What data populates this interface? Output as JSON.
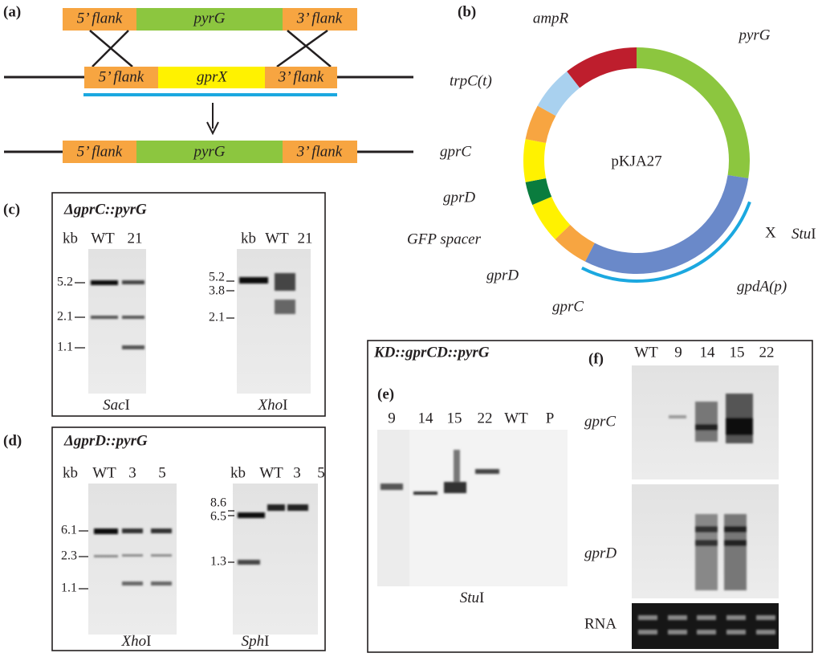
{
  "panel_a": {
    "label": "(a)",
    "rows": [
      {
        "left": "5’ flank",
        "mid": "pyrG",
        "right": "3’ flank"
      },
      {
        "left": "5’ flank",
        "mid": "gprX",
        "right": "3’ flank"
      },
      {
        "left": "5’ flank",
        "mid": "pyrG",
        "right": "3’ flank"
      }
    ]
  },
  "panel_b": {
    "label": "(b)",
    "name": "pKJA27",
    "features": [
      "ampR",
      "pyrG",
      "trpC(t)",
      "gprC",
      "gprD",
      "GFP spacer",
      "gprD",
      "gprC",
      "gpdA(p)"
    ],
    "site": {
      "mark": "X",
      "italic": "Stu",
      "roman": "I"
    }
  },
  "panel_c": {
    "label": "(c)",
    "title": "ΔgprC::pyrG",
    "blots": [
      {
        "header": [
          "kb",
          "WT",
          "21"
        ],
        "markers": [
          "5.2",
          "2.1",
          "1.1"
        ],
        "enzyme": {
          "italic": "Sac",
          "roman": "I"
        }
      },
      {
        "header": [
          "kb",
          "WT",
          "21"
        ],
        "markers": [
          "5.2",
          "3.8",
          "2.1"
        ],
        "enzyme": {
          "italic": "Xho",
          "roman": "I"
        }
      }
    ]
  },
  "panel_d": {
    "label": "(d)",
    "title": "ΔgprD::pyrG",
    "blots": [
      {
        "header": [
          "kb",
          "WT",
          "3",
          "5"
        ],
        "markers": [
          "6.1",
          "2.3",
          "1.1"
        ],
        "enzyme": {
          "italic": "Xho",
          "roman": "I"
        }
      },
      {
        "header": [
          "kb",
          "WT",
          "3",
          "5"
        ],
        "markers": [
          "8.6",
          "6.5",
          "1.3"
        ],
        "enzyme": {
          "italic": "Sph",
          "roman": "I"
        }
      }
    ]
  },
  "panel_ef": {
    "title": "KD::gprCD::pyrG",
    "e": {
      "label": "(e)",
      "lanes": [
        "9",
        "14",
        "15",
        "22",
        "WT",
        "P"
      ],
      "enzyme": {
        "italic": "Stu",
        "roman": "I"
      }
    },
    "f": {
      "label": "(f)",
      "lanes": [
        "WT",
        "9",
        "14",
        "15",
        "22"
      ],
      "rows": [
        "gprC",
        "gprD",
        "RNA"
      ]
    }
  }
}
